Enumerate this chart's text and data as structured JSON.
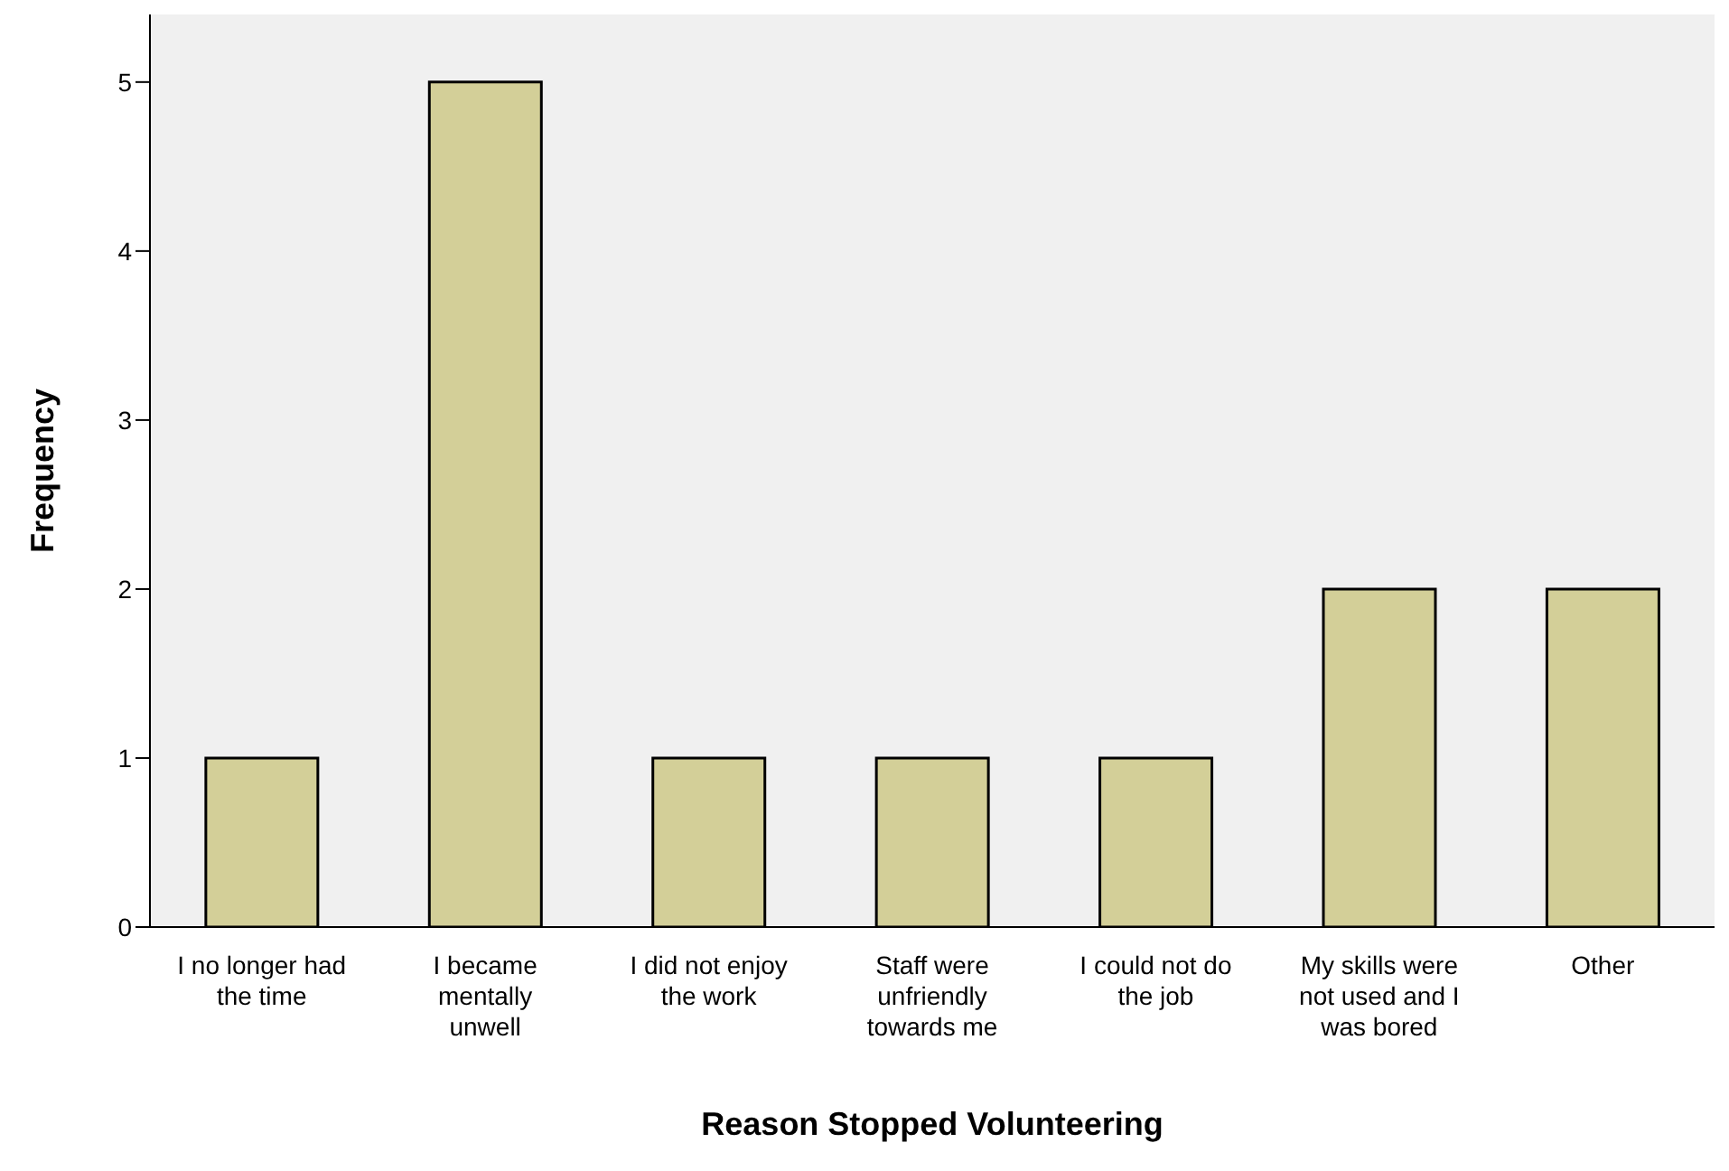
{
  "chart_data": {
    "type": "bar",
    "xlabel": "Reason Stopped Volunteering",
    "ylabel": "Frequency",
    "categories": [
      "I no longer had the time",
      "I became mentally unwell",
      "I did not enjoy the work",
      "Staff were unfriendly towards me",
      "I could not do the job",
      "My skills were not used and I was bored",
      "Other"
    ],
    "values": [
      1,
      5,
      1,
      1,
      1,
      2,
      2
    ],
    "color": "#d3cf98",
    "ylim": [
      0,
      5.4
    ],
    "yticks": [
      0,
      1,
      2,
      3,
      4,
      5
    ]
  }
}
